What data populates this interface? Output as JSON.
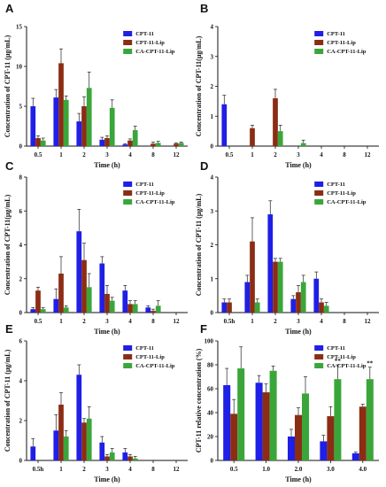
{
  "colors": {
    "CPT-11": "#1f1fe6",
    "CPT-11-Lip": "#8b2d14",
    "CA-CPT-11-Lip": "#3aa63a"
  },
  "chart_data": [
    {
      "panel": "A",
      "type": "bar",
      "categories": [
        "0.5",
        "1",
        "2",
        "3",
        "4",
        "8",
        "12"
      ],
      "xlabel": "Time (h)",
      "ylabel": "Concentration of CPT-11 (μg/mL)",
      "ylim": [
        0,
        15
      ],
      "yticks": [
        0,
        5,
        10,
        15
      ],
      "legend": "top-right",
      "series": [
        {
          "name": "CPT-11",
          "values": [
            5.0,
            6.1,
            3.1,
            0.8,
            0.2,
            0,
            0
          ],
          "errors": [
            1.0,
            1.0,
            1.0,
            0.3,
            0.1,
            0,
            0
          ]
        },
        {
          "name": "CPT-11-Lip",
          "values": [
            1.0,
            10.4,
            5.0,
            1.0,
            0.7,
            0.3,
            0.3
          ],
          "errors": [
            0.3,
            1.8,
            1.2,
            0.3,
            0.2,
            0.2,
            0.1
          ]
        },
        {
          "name": "CA-CPT-11-Lip",
          "values": [
            0.7,
            5.8,
            7.3,
            4.8,
            2.0,
            0.4,
            0.4
          ],
          "errors": [
            0.3,
            0.5,
            2.0,
            1.0,
            0.5,
            0.2,
            0.1
          ]
        }
      ],
      "annotations": []
    },
    {
      "panel": "B",
      "type": "bar",
      "categories": [
        "0.5",
        "1",
        "2",
        "3",
        "4",
        "8",
        "12"
      ],
      "xlabel": "Time (h)",
      "ylabel": "Concentration of CPT-11(μg/mL)",
      "ylim": [
        0,
        4
      ],
      "yticks": [
        0,
        1,
        2,
        3,
        4
      ],
      "legend": "top-right",
      "series": [
        {
          "name": "CPT-11",
          "values": [
            1.4,
            0,
            0,
            0,
            0,
            0,
            0
          ],
          "errors": [
            0.3,
            0,
            0,
            0,
            0,
            0,
            0
          ]
        },
        {
          "name": "CPT-11-Lip",
          "values": [
            0,
            0.6,
            1.6,
            0,
            0,
            0,
            0
          ],
          "errors": [
            0,
            0.1,
            0.3,
            0,
            0,
            0,
            0
          ]
        },
        {
          "name": "CA-CPT-11-Lip",
          "values": [
            0,
            0,
            0.5,
            0.1,
            0,
            0,
            0
          ],
          "errors": [
            0,
            0,
            0.2,
            0.1,
            0,
            0,
            0
          ]
        }
      ],
      "annotations": []
    },
    {
      "panel": "C",
      "type": "bar",
      "categories": [
        "0.5",
        "1",
        "2",
        "3",
        "4",
        "8",
        "12"
      ],
      "xlabel": "Time (h)",
      "ylabel": "Concentration of CPT-11(μg/mL)",
      "ylim": [
        0,
        8
      ],
      "yticks": [
        0,
        2,
        4,
        6,
        8
      ],
      "legend": "top-right",
      "series": [
        {
          "name": "CPT-11",
          "values": [
            0.2,
            0.8,
            4.8,
            2.9,
            1.3,
            0.3,
            0
          ],
          "errors": [
            0.1,
            0.6,
            1.3,
            0.4,
            0.3,
            0.1,
            0
          ]
        },
        {
          "name": "CPT-11-Lip",
          "values": [
            1.3,
            2.3,
            3.1,
            1.1,
            0.5,
            0.1,
            0
          ],
          "errors": [
            0.2,
            1.0,
            1.0,
            0.5,
            0.2,
            0.1,
            0
          ]
        },
        {
          "name": "CA-CPT-11-Lip",
          "values": [
            0.2,
            0.3,
            1.5,
            0.7,
            0.5,
            0.4,
            0
          ],
          "errors": [
            0.1,
            0.1,
            0.8,
            0.2,
            0.2,
            0.3,
            0
          ]
        }
      ],
      "annotations": []
    },
    {
      "panel": "D",
      "type": "bar",
      "categories": [
        "0.5h",
        "1",
        "2",
        "3",
        "4",
        "8",
        "12"
      ],
      "xlabel": "Time (h)",
      "ylabel": "Concentration of CPT-11 (μg/mL)",
      "ylim": [
        0,
        4
      ],
      "yticks": [
        0,
        1,
        2,
        3,
        4
      ],
      "legend": "top-right",
      "series": [
        {
          "name": "CPT-11",
          "values": [
            0.3,
            0.9,
            2.9,
            0.4,
            1.0,
            0,
            0
          ],
          "errors": [
            0.1,
            0.2,
            0.4,
            0.1,
            0.2,
            0,
            0
          ]
        },
        {
          "name": "CPT-11-Lip",
          "values": [
            0.3,
            2.1,
            1.5,
            0.6,
            0.3,
            0,
            0
          ],
          "errors": [
            0.1,
            0.7,
            0.1,
            0.2,
            0.1,
            0,
            0
          ]
        },
        {
          "name": "CA-CPT-11-Lip",
          "values": [
            0,
            0.3,
            1.5,
            0.9,
            0.2,
            0,
            0
          ],
          "errors": [
            0,
            0.1,
            0.1,
            0.2,
            0.1,
            0,
            0
          ]
        }
      ],
      "annotations": []
    },
    {
      "panel": "E",
      "type": "bar",
      "categories": [
        "0.5h",
        "1",
        "2",
        "3",
        "4",
        "8",
        "12"
      ],
      "xlabel": "Time (h)",
      "ylabel": "Concentration of CPT-11 (μg/mL)",
      "ylim": [
        0,
        6
      ],
      "yticks": [
        0,
        2,
        4,
        6
      ],
      "legend": "top-right",
      "series": [
        {
          "name": "CPT-11",
          "values": [
            0.7,
            1.5,
            4.3,
            0.9,
            0.4,
            0,
            0
          ],
          "errors": [
            0.4,
            0.8,
            0.5,
            0.3,
            0.2,
            0,
            0
          ]
        },
        {
          "name": "CPT-11-Lip",
          "values": [
            0,
            2.8,
            1.9,
            0.2,
            0.2,
            0,
            0
          ],
          "errors": [
            0,
            0.6,
            0.2,
            0.1,
            0.1,
            0,
            0
          ]
        },
        {
          "name": "CA-CPT-11-Lip",
          "values": [
            0,
            1.2,
            2.1,
            0.4,
            0.1,
            0,
            0
          ],
          "errors": [
            0,
            0.3,
            0.6,
            0.2,
            0.1,
            0,
            0
          ]
        }
      ],
      "annotations": []
    },
    {
      "panel": "F",
      "type": "bar",
      "categories": [
        "0.5",
        "1.0",
        "2.0",
        "3.0",
        "4.0"
      ],
      "xlabel": "Time (h)",
      "ylabel": "CPT-11 relative concentration (%)",
      "ylim": [
        0,
        100
      ],
      "yticks": [
        0,
        20,
        40,
        60,
        80,
        100
      ],
      "legend": "top-right",
      "series": [
        {
          "name": "CPT-11",
          "values": [
            63,
            65,
            20,
            16,
            6
          ],
          "errors": [
            14,
            6,
            6,
            5,
            1
          ]
        },
        {
          "name": "CPT-11-Lip",
          "values": [
            39,
            57,
            38,
            37,
            45
          ],
          "errors": [
            12,
            7,
            6,
            8,
            2
          ]
        },
        {
          "name": "CA-CPT-11-Lip",
          "values": [
            77,
            75,
            56,
            68,
            68
          ],
          "errors": [
            18,
            4,
            14,
            12,
            10
          ]
        }
      ],
      "annotations": [
        {
          "category": "3.0",
          "text": "**"
        },
        {
          "category": "4.0",
          "text": "**"
        }
      ]
    }
  ]
}
